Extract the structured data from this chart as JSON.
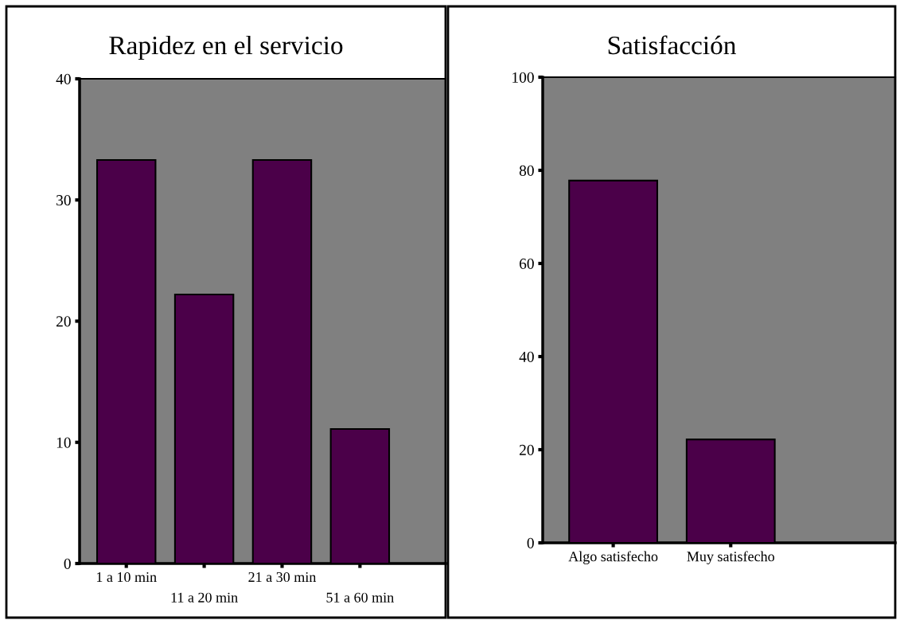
{
  "chart_data": [
    {
      "type": "bar",
      "title": "Rapidez en el servicio",
      "categories": [
        "1 a 10 min",
        "11 a 20 min",
        "21 a 30 min",
        "51 a 60 min"
      ],
      "values": [
        33.3,
        22.2,
        33.3,
        11.1
      ],
      "color": "#4b0049",
      "ylim": [
        0,
        40
      ],
      "yticks": [
        0,
        10,
        20,
        30,
        40
      ],
      "grid": false,
      "legend": false
    },
    {
      "type": "bar",
      "title": "Satisfacción",
      "categories": [
        "Algo satisfecho",
        "Muy satisfecho"
      ],
      "values": [
        77.8,
        22.2
      ],
      "color": "#4b0049",
      "ylim": [
        0,
        100
      ],
      "yticks": [
        0,
        20,
        40,
        60,
        80,
        100
      ],
      "grid": false,
      "legend": false
    }
  ]
}
